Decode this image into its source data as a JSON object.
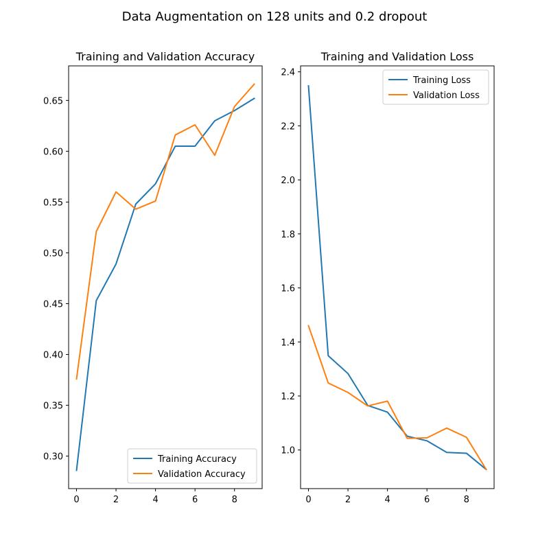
{
  "figure": {
    "suptitle": "Data Augmentation on 128 units and 0.2 dropout"
  },
  "chart_data": [
    {
      "type": "line",
      "title": "Training and Validation Accuracy",
      "xlabel": "",
      "ylabel": "",
      "x": [
        0,
        1,
        2,
        3,
        4,
        5,
        6,
        7,
        8,
        9
      ],
      "xlim": [
        -0.4,
        9.4
      ],
      "ylim": [
        0.268,
        0.684
      ],
      "xticks": [
        0,
        2,
        4,
        6,
        8
      ],
      "xtick_labels": [
        "0",
        "2",
        "4",
        "6",
        "8"
      ],
      "yticks": [
        0.3,
        0.35,
        0.4,
        0.45,
        0.5,
        0.55,
        0.6,
        0.65
      ],
      "ytick_labels": [
        "0.30",
        "0.35",
        "0.40",
        "0.45",
        "0.50",
        "0.55",
        "0.60",
        "0.65"
      ],
      "legend": "lower right",
      "grid": false,
      "series": [
        {
          "name": "Training Accuracy",
          "color": "#1f77b4",
          "values": [
            0.286,
            0.453,
            0.489,
            0.548,
            0.568,
            0.605,
            0.605,
            0.63,
            0.64,
            0.652
          ]
        },
        {
          "name": "Validation Accuracy",
          "color": "#ff7f0e",
          "values": [
            0.376,
            0.521,
            0.56,
            0.543,
            0.551,
            0.616,
            0.626,
            0.596,
            0.644,
            0.666
          ]
        }
      ]
    },
    {
      "type": "line",
      "title": "Training and Validation Loss",
      "xlabel": "",
      "ylabel": "",
      "x": [
        0,
        1,
        2,
        3,
        4,
        5,
        6,
        7,
        8,
        9
      ],
      "xlim": [
        -0.4,
        9.4
      ],
      "ylim": [
        0.857,
        2.422
      ],
      "xticks": [
        0,
        2,
        4,
        6,
        8
      ],
      "xtick_labels": [
        "0",
        "2",
        "4",
        "6",
        "8"
      ],
      "yticks": [
        1.0,
        1.2,
        1.4,
        1.6,
        1.8,
        2.0,
        2.2,
        2.4
      ],
      "ytick_labels": [
        "1.0",
        "1.2",
        "1.4",
        "1.6",
        "1.8",
        "2.0",
        "2.2",
        "2.4"
      ],
      "legend": "upper right",
      "grid": false,
      "series": [
        {
          "name": "Training Loss",
          "color": "#1f77b4",
          "values": [
            2.348,
            1.349,
            1.283,
            1.165,
            1.14,
            1.051,
            1.034,
            0.991,
            0.988,
            0.928
          ]
        },
        {
          "name": "Validation Loss",
          "color": "#ff7f0e",
          "values": [
            1.46,
            1.248,
            1.213,
            1.163,
            1.181,
            1.043,
            1.045,
            1.081,
            1.047,
            0.928
          ]
        }
      ]
    }
  ]
}
